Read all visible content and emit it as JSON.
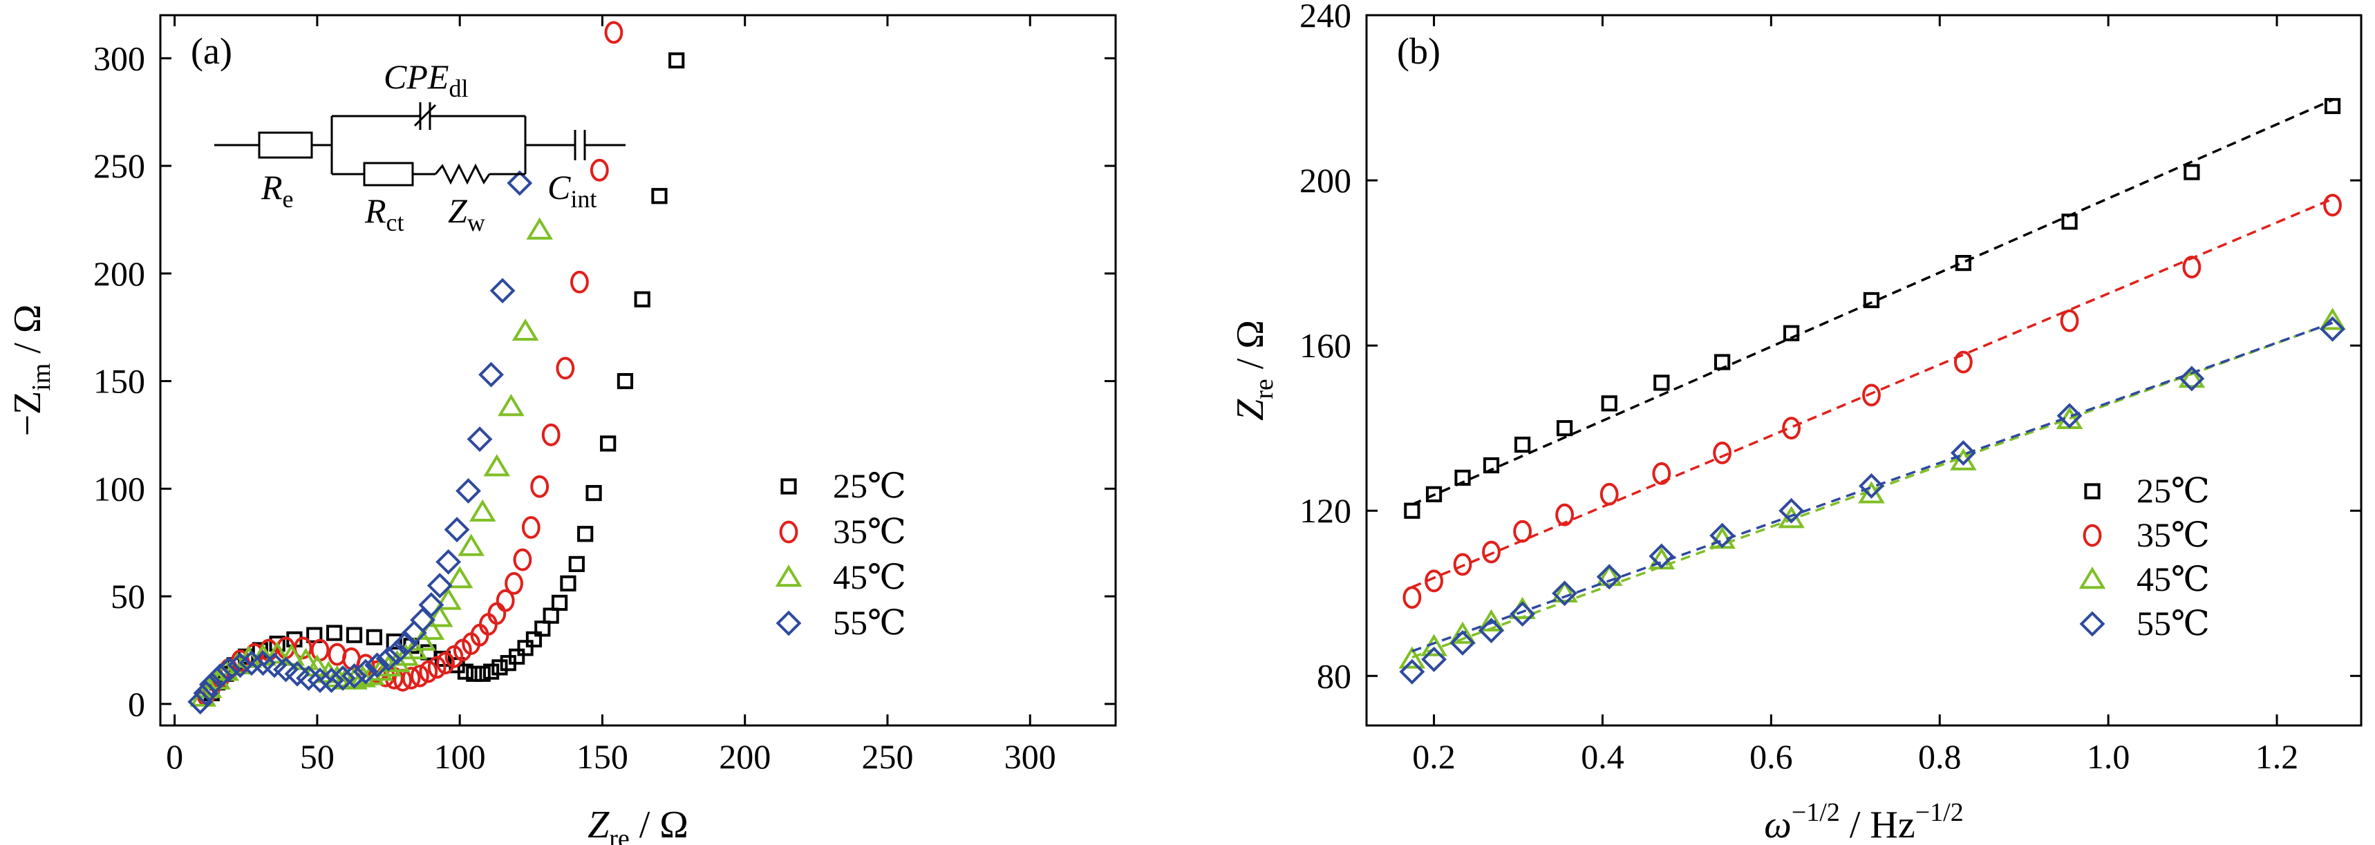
{
  "series_styles": [
    {
      "marker": "square",
      "color": "#000000"
    },
    {
      "marker": "circle",
      "color": "#e0201b"
    },
    {
      "marker": "triangle",
      "color": "#7fbf26"
    },
    {
      "marker": "diamond",
      "color": "#2e4a9e"
    }
  ],
  "chart_data": [
    {
      "type": "scatter",
      "panel_label": "(a)",
      "xlabel": {
        "main": "Z",
        "sub": "re",
        "rest": " / Ω"
      },
      "ylabel": {
        "prefix": "−Z",
        "sub": "im",
        "rest": " / Ω"
      },
      "xlim": [
        -5,
        330
      ],
      "ylim": [
        -10,
        320
      ],
      "xticks": [
        0,
        50,
        100,
        150,
        200,
        250,
        300
      ],
      "yticks": [
        0,
        50,
        100,
        150,
        200,
        250,
        300
      ],
      "xtick_labels": [
        "0",
        "50",
        "100",
        "150",
        "200",
        "250",
        "300"
      ],
      "ytick_labels": [
        "0",
        "50",
        "100",
        "150",
        "200",
        "250",
        "300"
      ],
      "legend_position": "bottom-right",
      "circuit": {
        "cpe_main": "CPE",
        "cpe_sub": "dl",
        "re_main": "R",
        "re_sub": "e",
        "rct_main": "R",
        "rct_sub": "ct",
        "zw_main": "Z",
        "zw_sub": "w",
        "cint_main": "C",
        "cint_sub": "int"
      },
      "series": [
        {
          "name": "25℃",
          "points": [
            [
              13,
              5
            ],
            [
              15,
              10
            ],
            [
              18,
              14
            ],
            [
              21,
              18
            ],
            [
              25,
              22
            ],
            [
              30,
              25
            ],
            [
              36,
              28
            ],
            [
              42,
              30
            ],
            [
              49,
              32
            ],
            [
              56,
              33
            ],
            [
              63,
              32
            ],
            [
              70,
              31
            ],
            [
              77,
              29
            ],
            [
              83,
              27
            ],
            [
              89,
              24
            ],
            [
              94,
              21
            ],
            [
              99,
              18
            ],
            [
              102,
              15
            ],
            [
              105,
              14
            ],
            [
              108,
              14
            ],
            [
              111,
              15
            ],
            [
              114,
              17
            ],
            [
              117,
              19
            ],
            [
              120,
              22
            ],
            [
              123,
              26
            ],
            [
              126,
              30
            ],
            [
              129,
              35
            ],
            [
              132,
              41
            ],
            [
              135,
              47
            ],
            [
              138,
              56
            ],
            [
              141,
              65
            ],
            [
              144,
              79
            ],
            [
              147,
              98
            ],
            [
              152,
              121
            ],
            [
              158,
              150
            ],
            [
              164,
              188
            ],
            [
              170,
              236
            ],
            [
              176,
              299
            ]
          ]
        },
        {
          "name": "35℃",
          "points": [
            [
              11,
              4
            ],
            [
              13,
              8
            ],
            [
              16,
              12
            ],
            [
              19,
              16
            ],
            [
              23,
              20
            ],
            [
              28,
              23
            ],
            [
              33,
              25
            ],
            [
              39,
              26
            ],
            [
              45,
              26
            ],
            [
              51,
              25
            ],
            [
              57,
              23
            ],
            [
              62,
              21
            ],
            [
              67,
              18
            ],
            [
              71,
              15
            ],
            [
              74,
              13
            ],
            [
              77,
              12
            ],
            [
              80,
              11
            ],
            [
              83,
              12
            ],
            [
              86,
              13
            ],
            [
              89,
              15
            ],
            [
              92,
              17
            ],
            [
              95,
              19
            ],
            [
              98,
              22
            ],
            [
              101,
              25
            ],
            [
              104,
              28
            ],
            [
              107,
              32
            ],
            [
              110,
              37
            ],
            [
              113,
              42
            ],
            [
              116,
              48
            ],
            [
              119,
              56
            ],
            [
              122,
              67
            ],
            [
              125,
              82
            ],
            [
              128,
              101
            ],
            [
              132,
              125
            ],
            [
              137,
              156
            ],
            [
              142,
              196
            ],
            [
              149,
              248
            ],
            [
              154,
              312
            ]
          ]
        },
        {
          "name": "45℃",
          "points": [
            [
              10,
              3
            ],
            [
              12,
              7
            ],
            [
              15,
              11
            ],
            [
              18,
              15
            ],
            [
              22,
              18
            ],
            [
              26,
              21
            ],
            [
              31,
              22
            ],
            [
              36,
              23
            ],
            [
              41,
              22
            ],
            [
              46,
              20
            ],
            [
              50,
              17
            ],
            [
              54,
              14
            ],
            [
              57,
              12
            ],
            [
              60,
              11
            ],
            [
              63,
              11
            ],
            [
              66,
              12
            ],
            [
              69,
              13
            ],
            [
              72,
              15
            ],
            [
              75,
              17
            ],
            [
              78,
              19
            ],
            [
              81,
              22
            ],
            [
              84,
              25
            ],
            [
              87,
              29
            ],
            [
              90,
              34
            ],
            [
              93,
              40
            ],
            [
              96,
              48
            ],
            [
              100,
              58
            ],
            [
              104,
              73
            ],
            [
              108,
              89
            ],
            [
              113,
              110
            ],
            [
              118,
              138
            ],
            [
              123,
              173
            ],
            [
              128,
              220
            ]
          ]
        },
        {
          "name": "55℃",
          "points": [
            [
              9,
              1
            ],
            [
              11,
              5
            ],
            [
              13,
              9
            ],
            [
              16,
              13
            ],
            [
              19,
              16
            ],
            [
              23,
              18
            ],
            [
              27,
              19
            ],
            [
              31,
              19
            ],
            [
              35,
              18
            ],
            [
              39,
              16
            ],
            [
              43,
              14
            ],
            [
              47,
              12
            ],
            [
              51,
              11
            ],
            [
              55,
              11
            ],
            [
              59,
              12
            ],
            [
              63,
              13
            ],
            [
              67,
              15
            ],
            [
              71,
              18
            ],
            [
              75,
              21
            ],
            [
              78,
              24
            ],
            [
              81,
              28
            ],
            [
              84,
              33
            ],
            [
              87,
              39
            ],
            [
              90,
              46
            ],
            [
              93,
              55
            ],
            [
              96,
              66
            ],
            [
              99,
              81
            ],
            [
              103,
              99
            ],
            [
              107,
              123
            ],
            [
              111,
              153
            ],
            [
              115,
              192
            ],
            [
              121,
              242
            ]
          ]
        }
      ]
    },
    {
      "type": "scatter",
      "panel_label": "(b)",
      "xlabel": {
        "main": "ω",
        "sup": "−1/2",
        "rest": " / Hz",
        "sup2": "−1/2"
      },
      "ylabel": {
        "main": "Z",
        "sub": "re",
        "rest": " / Ω"
      },
      "xlim": [
        0.12,
        1.3
      ],
      "ylim": [
        68,
        240
      ],
      "xticks": [
        0.2,
        0.4,
        0.6,
        0.8,
        1.0,
        1.2
      ],
      "yticks": [
        80,
        120,
        160,
        200,
        240
      ],
      "xtick_labels": [
        "0.2",
        "0.4",
        "0.6",
        "0.8",
        "1.0",
        "1.2"
      ],
      "ytick_labels": [
        "80",
        "120",
        "160",
        "200",
        "240"
      ],
      "legend_position": "bottom-right",
      "fit": "linear (dashed)",
      "x": [
        0.174,
        0.2,
        0.234,
        0.268,
        0.305,
        0.355,
        0.408,
        0.47,
        0.542,
        0.624,
        0.719,
        0.828,
        0.954,
        1.099,
        1.266
      ],
      "series": [
        {
          "name": "25℃",
          "values": [
            120,
            124,
            128,
            131,
            136,
            140,
            146,
            151,
            156,
            163,
            171,
            180,
            190,
            202,
            218
          ],
          "fit": [
            121.5,
            219.5
          ]
        },
        {
          "name": "35℃",
          "values": [
            99,
            103,
            107,
            110,
            115,
            119,
            124,
            129,
            134,
            140,
            148,
            156,
            166,
            179,
            194
          ],
          "fit": [
            101.5,
            195.5
          ]
        },
        {
          "name": "45℃",
          "values": [
            84,
            87,
            90,
            93,
            96,
            100,
            104,
            108,
            113,
            118,
            124,
            132,
            142,
            152,
            166
          ],
          "fit": [
            84.5,
            165.5
          ]
        },
        {
          "name": "55℃",
          "values": [
            81,
            84,
            88,
            91,
            95,
            100,
            104,
            109,
            114,
            120,
            126,
            134,
            143,
            152,
            164
          ],
          "fit": [
            86.0,
            165.5
          ]
        }
      ]
    }
  ]
}
